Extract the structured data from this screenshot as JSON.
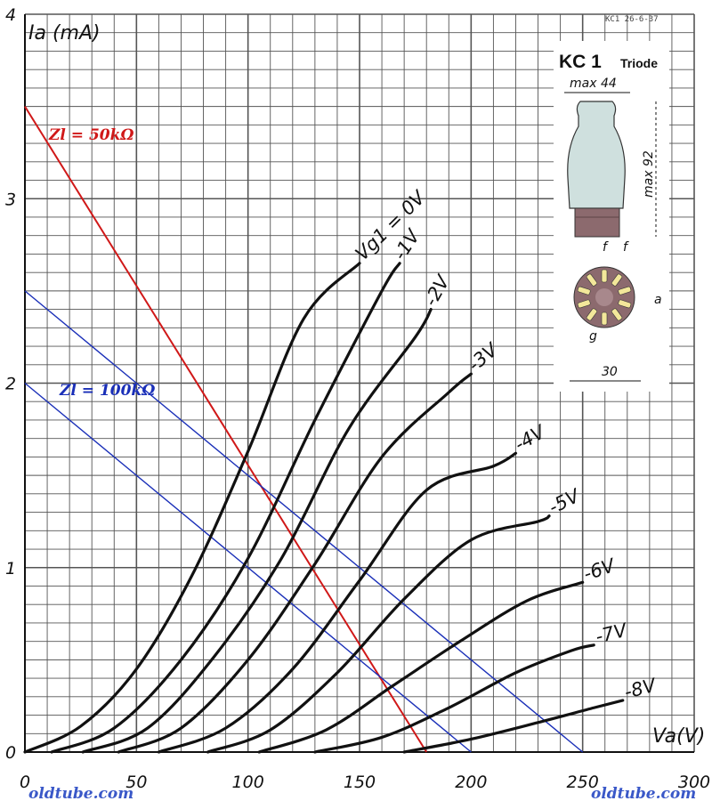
{
  "chart_data": {
    "type": "line",
    "title": "",
    "xlabel": "Va(V)",
    "ylabel": "Ia (mA)",
    "xlim": [
      0,
      300
    ],
    "ylim": [
      0,
      4
    ],
    "x_ticks": [
      "0",
      "50",
      "100",
      "150",
      "200",
      "250",
      "300"
    ],
    "y_ticks": [
      "0",
      "1",
      "2",
      "3",
      "4"
    ],
    "grid": true,
    "minor_grid_step": {
      "x": 10,
      "y": 0.1
    },
    "series": [
      {
        "name": "Vg1 = 0V",
        "x": [
          0,
          25,
          50,
          75,
          100,
          125,
          150
        ],
        "y": [
          0,
          0.14,
          0.45,
          0.96,
          1.63,
          2.35,
          2.65
        ]
      },
      {
        "name": "-1V",
        "x": [
          12,
          40,
          70,
          100,
          130,
          160,
          168
        ],
        "y": [
          0,
          0.13,
          0.5,
          1.05,
          1.8,
          2.5,
          2.65
        ]
      },
      {
        "name": "-2V",
        "x": [
          26,
          55,
          85,
          115,
          145,
          175,
          182
        ],
        "y": [
          0,
          0.13,
          0.52,
          1.05,
          1.75,
          2.25,
          2.4
        ]
      },
      {
        "name": "-3V",
        "x": [
          42,
          70,
          100,
          130,
          160,
          190,
          200
        ],
        "y": [
          0,
          0.13,
          0.5,
          1.02,
          1.6,
          1.95,
          2.05
        ]
      },
      {
        "name": "-4V",
        "x": [
          60,
          90,
          120,
          150,
          180,
          210,
          220
        ],
        "y": [
          0,
          0.13,
          0.45,
          0.93,
          1.42,
          1.55,
          1.62
        ]
      },
      {
        "name": "-5V",
        "x": [
          82,
          110,
          140,
          170,
          200,
          230,
          235
        ],
        "y": [
          0,
          0.12,
          0.43,
          0.83,
          1.15,
          1.25,
          1.28
        ]
      },
      {
        "name": "-6V",
        "x": [
          105,
          135,
          165,
          195,
          225,
          250
        ],
        "y": [
          0,
          0.12,
          0.36,
          0.6,
          0.82,
          0.92
        ]
      },
      {
        "name": "-7V",
        "x": [
          130,
          160,
          190,
          220,
          245,
          255
        ],
        "y": [
          0,
          0.08,
          0.24,
          0.43,
          0.55,
          0.58
        ]
      },
      {
        "name": "-8V",
        "x": [
          170,
          200,
          230,
          255,
          268
        ],
        "y": [
          0,
          0.07,
          0.16,
          0.24,
          0.28
        ]
      }
    ],
    "load_lines": [
      {
        "name": "Zl = 50kΩ",
        "color": "#d01818",
        "x": [
          0,
          180
        ],
        "y": [
          3.5,
          0
        ]
      },
      {
        "name": "Zl = 100kΩ",
        "color": "#1a2fb8",
        "x": [
          0,
          250
        ],
        "y": [
          2.5,
          0
        ]
      },
      {
        "name": "",
        "color": "#1a2fb8",
        "x": [
          0,
          200
        ],
        "y": [
          2.0,
          0
        ]
      }
    ],
    "curve_labels": [
      "Vg1 = 0V",
      "-1V",
      "-2V",
      "-3V",
      "-4V",
      "-5V",
      "-6V",
      "-7V",
      "-8V"
    ]
  },
  "text": {
    "header_ref": "KC1  26-6-37",
    "watermark_left": "oldtube.com",
    "watermark_right": "oldtube.com",
    "load_50": "Zl = 50kΩ",
    "load_100": "Zl = 100kΩ"
  },
  "inset": {
    "title": "KC 1",
    "subtitle": "Triode",
    "width_label": "max 44",
    "height_label": "max 92",
    "base_label": "30",
    "pin_f1": "f",
    "pin_f2": "f",
    "pin_a": "a",
    "pin_g": "g"
  },
  "colors": {
    "grid": "#555555",
    "curve": "#111111",
    "load_50": "#d01818",
    "load_100": "#1a2fb8",
    "bulb": "#cfe0de",
    "base": "#8c6a6e",
    "pins": "#f3e79a"
  }
}
